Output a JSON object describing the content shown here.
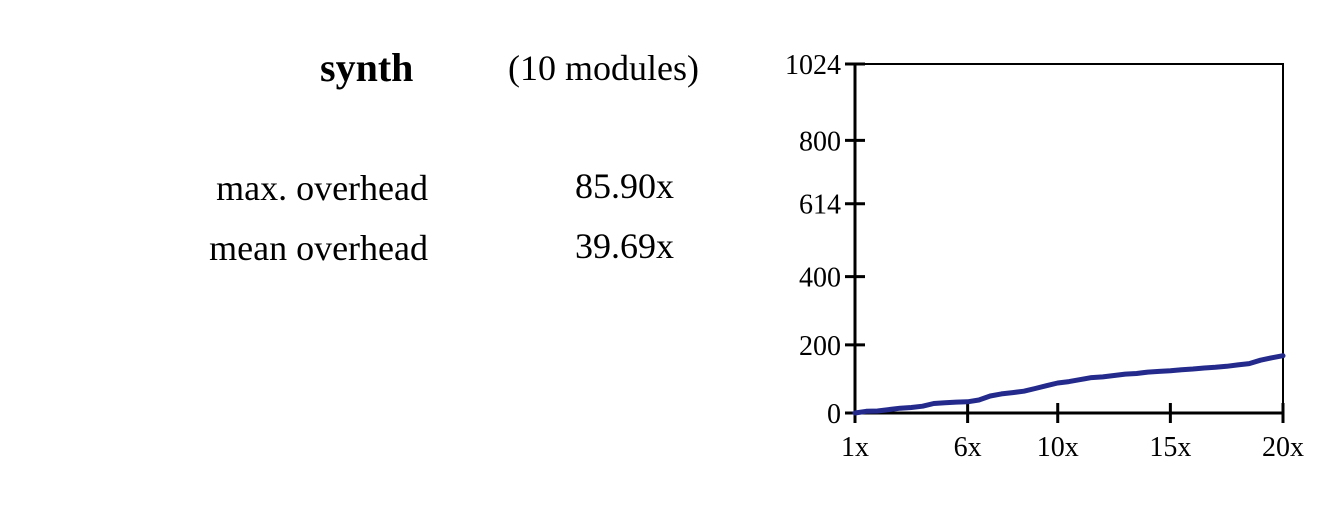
{
  "header": {
    "title": "synth",
    "subtitle": "(10 modules)"
  },
  "stats": [
    {
      "label": "max. overhead",
      "value": "85.90x"
    },
    {
      "label": "mean overhead",
      "value": "39.69x"
    }
  ],
  "chart_data": {
    "type": "line",
    "title": "",
    "xlabel": "",
    "ylabel": "",
    "xlim": [
      1,
      20
    ],
    "ylim": [
      0,
      1024
    ],
    "x_ticks": [
      1,
      6,
      10,
      15,
      20
    ],
    "x_tick_labels": [
      "1x",
      "6x",
      "10x",
      "15x",
      "20x"
    ],
    "y_ticks": [
      0,
      200,
      400,
      614,
      800,
      1024
    ],
    "y_tick_labels": [
      "0",
      "200",
      "400",
      "614",
      "800",
      "1024"
    ],
    "grid": false,
    "colors": {
      "series": "#232a8c",
      "marker_green": "#3cb04a",
      "marker_orange": "#f0a040"
    },
    "series": [
      {
        "x": [
          1,
          1.5,
          2,
          2.5,
          3,
          3.5,
          4,
          4.5,
          5,
          5.5,
          6,
          6.5,
          7,
          7.5,
          8,
          8.5,
          9,
          9.5,
          10,
          10.5,
          11,
          11.5,
          12,
          12.5,
          13,
          13.5,
          14,
          14.5,
          15,
          15.5,
          16,
          16.5,
          17,
          17.5,
          18,
          18.5,
          19,
          19.5,
          20
        ],
        "values": [
          0,
          5,
          6,
          10,
          14,
          16,
          20,
          28,
          30,
          32,
          33,
          38,
          50,
          56,
          60,
          64,
          72,
          80,
          88,
          92,
          98,
          104,
          106,
          110,
          114,
          116,
          120,
          122,
          124,
          127,
          129,
          132,
          134,
          137,
          141,
          145,
          155,
          162,
          168
        ]
      }
    ]
  }
}
